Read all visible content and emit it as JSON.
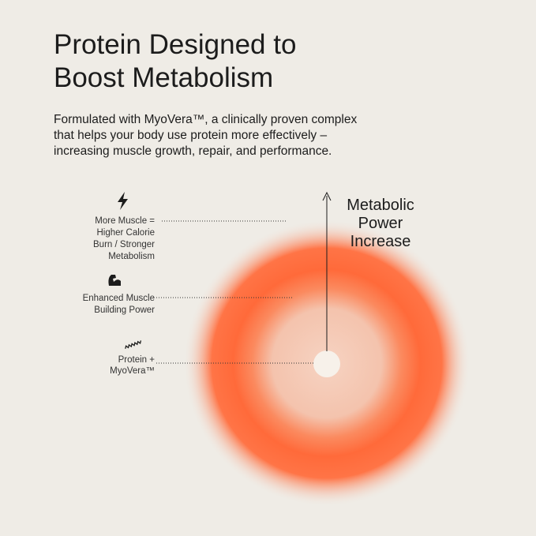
{
  "header": {
    "title_lines": [
      "Protein Designed to",
      "Boost Metabolism"
    ],
    "body_lines": [
      "Formulated with MyoVera™,  a clinically proven complex",
      "that helps your body use protein more effectively –",
      "increasing muscle growth, repair, and performance."
    ]
  },
  "diagram": {
    "axis_label_lines": [
      "Metabolic",
      "Power",
      "Increase"
    ],
    "labels": [
      {
        "lines": [
          "More Muscle =",
          "Higher Calorie",
          "Burn / Stronger",
          "Metabolism"
        ]
      },
      {
        "lines": [
          "Enhanced Muscle",
          "Building Power"
        ]
      },
      {
        "lines": [
          "Protein +",
          "MyoVera™"
        ]
      }
    ]
  }
}
